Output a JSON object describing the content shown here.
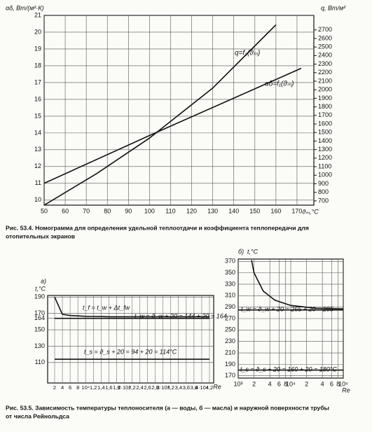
{
  "chart_data": [
    {
      "type": "line",
      "y_title": "αδ, Вт/(м²·К)",
      "y2_title": "q, Вт/м²",
      "x_title": "ϑₘ,°C",
      "xlim": [
        50,
        178
      ],
      "xticks": [
        50,
        60,
        70,
        80,
        90,
        100,
        110,
        120,
        130,
        140,
        150,
        160,
        170
      ],
      "ylim": [
        9.7,
        21
      ],
      "yticks": [
        10,
        11,
        12,
        13,
        14,
        15,
        16,
        17,
        18,
        19,
        20,
        21
      ],
      "y2lim": [
        650,
        2870
      ],
      "y2ticks": [
        700,
        800,
        900,
        1000,
        1100,
        1200,
        1300,
        1400,
        1500,
        1600,
        1700,
        1800,
        1900,
        2000,
        2100,
        2200,
        2300,
        2400,
        2500,
        2600,
        2700
      ],
      "grid": true,
      "series": [
        {
          "name": "q=f₂(ϑₘ)",
          "color": "#111",
          "axis": "y2",
          "x": [
            50,
            75,
            100,
            130,
            160
          ],
          "values": [
            650,
            1020,
            1435,
            2020,
            2760
          ]
        },
        {
          "name": "αδ=f₁(ϑₘ)",
          "color": "#111",
          "x": [
            50,
            100,
            172
          ],
          "values": [
            11.0,
            13.85,
            17.85
          ]
        }
      ]
    },
    {
      "type": "line",
      "panel": "а)",
      "y_title": "t,°C",
      "x_title": "Re",
      "categories": [
        "2",
        "4",
        "6",
        "8",
        "10⁴",
        "1,2",
        "1,4",
        "1,6",
        "1,8",
        "2·10⁴",
        "2,2",
        "2,4",
        "2,6",
        "2,8",
        "3·10⁴",
        "3,2",
        "3,4",
        "3,6",
        "3,8",
        "4·10⁴",
        "4,2"
      ],
      "ylim": [
        85,
        192
      ],
      "yticks": [
        110,
        130,
        150,
        164,
        170,
        190
      ],
      "grid": true,
      "annotations": [
        "t_f = t_w + Δt_fw",
        "t_w = ϑ_w + 20 = 144 + 20 = 164",
        "t_s = ϑ_s + 20 = 94 + 20 = 114°C"
      ],
      "series": [
        {
          "name": "t_f",
          "color": "#111",
          "values": [
            190,
            169,
            167.5,
            167,
            166.5,
            166.3,
            166.2,
            166,
            166,
            166,
            166,
            166,
            166,
            166,
            166,
            166,
            166,
            166,
            166,
            166,
            166
          ]
        },
        {
          "name": "t_w",
          "color": "#111",
          "values": [
            164,
            164,
            164,
            164,
            164,
            164,
            164,
            164,
            164,
            164,
            164,
            164,
            164,
            164,
            164,
            164,
            164,
            164,
            164,
            164,
            164
          ]
        },
        {
          "name": "t_s",
          "color": "#111",
          "values": [
            114,
            114,
            114,
            114,
            114,
            114,
            114,
            114,
            114,
            114,
            114,
            114,
            114,
            114,
            114,
            114,
            114,
            114,
            114,
            114,
            114
          ]
        }
      ]
    },
    {
      "type": "line",
      "panel": "б)",
      "y_title": "t,°C",
      "x_title": "Re",
      "xlog": true,
      "xlim": [
        1000,
        100000
      ],
      "xticks": [
        {
          "value": 1000,
          "label": "10³"
        },
        {
          "value": 2000,
          "label": "2"
        },
        {
          "value": 4000,
          "label": "4"
        },
        {
          "value": 6000,
          "label": "6"
        },
        {
          "value": 8000,
          "label": "8"
        },
        {
          "value": 10000,
          "label": "10⁴"
        },
        {
          "value": 20000,
          "label": "2"
        },
        {
          "value": 40000,
          "label": "4"
        },
        {
          "value": 60000,
          "label": "6"
        },
        {
          "value": 80000,
          "label": "8"
        },
        {
          "value": 100000,
          "label": "10⁵"
        }
      ],
      "ylim": [
        166,
        374
      ],
      "yticks": [
        170,
        190,
        210,
        230,
        250,
        270,
        290,
        310,
        330,
        350,
        370
      ],
      "grid": true,
      "annotations": [
        "t_w = ϑ_w + 20 = 265 + 20 = 285",
        "t_s = ϑ_s + 20 = 160 + 20 = 180°C"
      ],
      "series": [
        {
          "name": "t_f",
          "color": "#111",
          "x": [
            1800,
            2000,
            3000,
            5000,
            10000,
            30000,
            100000
          ],
          "values": [
            372,
            350,
            318,
            302,
            293,
            288,
            287
          ]
        },
        {
          "name": "t_w",
          "color": "#111",
          "x": [
            1000,
            100000
          ],
          "values": [
            285,
            285
          ]
        },
        {
          "name": "t_s",
          "color": "#111",
          "x": [
            1000,
            100000
          ],
          "values": [
            180,
            180
          ]
        }
      ]
    }
  ],
  "captions": [
    "Рис. 53.4. Номограмма для определения удельной теплоотдачи и коэффициента теплопередачи для",
    "отопительных экранов",
    "Рис. 53.5. Зависимость температуры теплоносителя (а — воды, б — масла) и наружной поверхности трубы",
    "от числа Рейнольдса"
  ]
}
